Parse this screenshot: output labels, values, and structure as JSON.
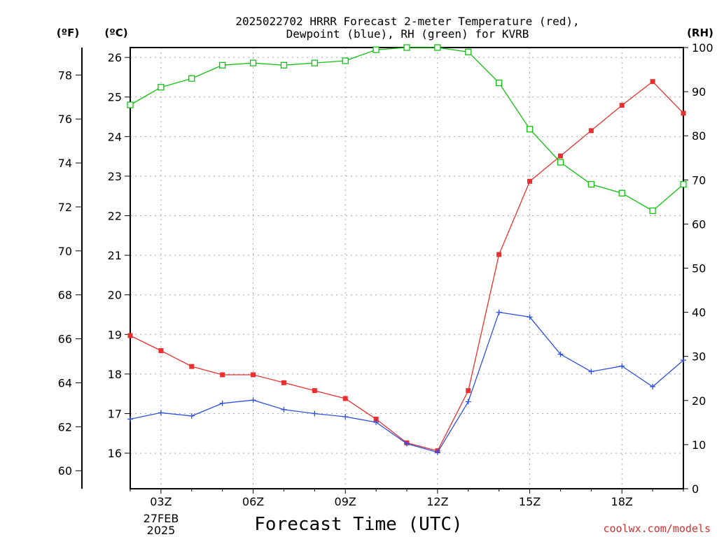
{
  "title_line1": "2025022702 HRRR Forecast 2-meter Temperature (red),",
  "title_line2": "Dewpoint (blue), RH (green) for KVRB",
  "units": {
    "fahrenheit": "(ºF)",
    "celsius": "(ºC)",
    "rh": "(RH)"
  },
  "xlabel": "Forecast Time (UTC)",
  "date_label": [
    "27FEB",
    "2025"
  ],
  "credit": "coolwx.com/models",
  "chart_data": {
    "type": "line",
    "x_hours_utc": [
      2,
      3,
      4,
      5,
      6,
      7,
      8,
      9,
      10,
      11,
      12,
      13,
      14,
      15,
      16,
      17,
      18,
      19,
      20
    ],
    "x_tick_labels": [
      {
        "hour": 3,
        "label": "03Z"
      },
      {
        "hour": 6,
        "label": "06Z"
      },
      {
        "hour": 9,
        "label": "09Z"
      },
      {
        "hour": 12,
        "label": "12Z"
      },
      {
        "hour": 15,
        "label": "15Z"
      },
      {
        "hour": 18,
        "label": "18Z"
      }
    ],
    "xlim": [
      2,
      20
    ],
    "ylim_celsius": [
      15.1,
      26.25
    ],
    "ylim_fahrenheit": [
      59.18,
      79.25
    ],
    "ylim_rh": [
      0,
      100
    ],
    "yticks_celsius": [
      16,
      17,
      18,
      19,
      20,
      21,
      22,
      23,
      24,
      25,
      26
    ],
    "yticks_fahrenheit": [
      60,
      62,
      64,
      66,
      68,
      70,
      72,
      74,
      76,
      78
    ],
    "yticks_rh": [
      0,
      10,
      20,
      30,
      40,
      50,
      60,
      70,
      80,
      90,
      100
    ],
    "grid": true,
    "series": [
      {
        "name": "Temperature",
        "axis": "celsius",
        "color": "#e83030",
        "marker": "filled-square",
        "values": [
          18.97,
          18.59,
          18.19,
          17.98,
          17.98,
          17.78,
          17.58,
          17.38,
          16.86,
          16.26,
          16.06,
          17.58,
          21.02,
          22.87,
          23.51,
          24.15,
          24.79,
          25.39,
          24.59
        ]
      },
      {
        "name": "Dewpoint",
        "axis": "celsius",
        "color": "#3050e0",
        "marker": "plus",
        "values": [
          16.86,
          17.02,
          16.94,
          17.26,
          17.34,
          17.1,
          17.0,
          16.92,
          16.78,
          16.24,
          16.02,
          17.3,
          19.56,
          19.44,
          18.5,
          18.06,
          18.2,
          17.68,
          18.35
        ]
      },
      {
        "name": "RH",
        "axis": "rh",
        "color": "#10c010",
        "marker": "open-square",
        "values": [
          87,
          91,
          93,
          96,
          96.5,
          96,
          96.5,
          97,
          99.5,
          100,
          100,
          99,
          92,
          81.5,
          74,
          69,
          67,
          63,
          69
        ]
      }
    ]
  }
}
